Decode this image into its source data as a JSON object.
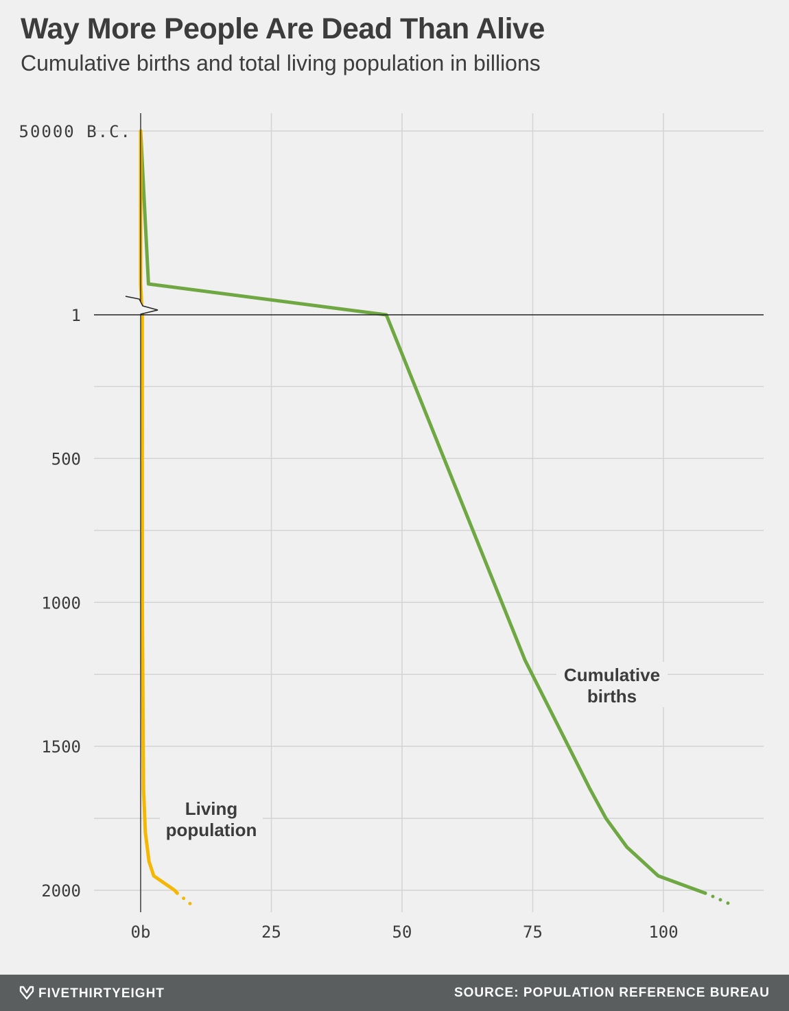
{
  "title": "Way More People Are Dead Than Alive",
  "subtitle": "Cumulative births and total living population in billions",
  "footer": {
    "brand": "FIVETHIRTYEIGHT",
    "brand_icon": "fivethirtyeight-fox-icon",
    "source": "SOURCE: POPULATION REFERENCE BUREAU"
  },
  "colors": {
    "background": "#f0f0f0",
    "cumulative_births": "#6fa843",
    "living_population": "#f5b800",
    "footer": "#5a5e5f"
  },
  "chart_data": {
    "type": "line",
    "y_axis": {
      "reversed": true,
      "axis_break": "between 50000 B.C. and 1",
      "ticks": [
        {
          "value": -50000,
          "label": "50000 B.C."
        },
        {
          "value": 1,
          "label": "1"
        },
        {
          "value": 500,
          "label": "500"
        },
        {
          "value": 1000,
          "label": "1000"
        },
        {
          "value": 1500,
          "label": "1500"
        },
        {
          "value": 2000,
          "label": "2000"
        }
      ],
      "gridlines": [
        -50000,
        1,
        250,
        500,
        750,
        1000,
        1250,
        1500,
        1750,
        2000
      ]
    },
    "x_axis": {
      "range": [
        0,
        110
      ],
      "ticks": [
        {
          "value": 0,
          "label": "0b"
        },
        {
          "value": 25,
          "label": "25"
        },
        {
          "value": 50,
          "label": "50"
        },
        {
          "value": 75,
          "label": "75"
        },
        {
          "value": 100,
          "label": "100"
        }
      ]
    },
    "grid": true,
    "series": [
      {
        "name": "Cumulative births",
        "label_lines": [
          "Cumulative",
          "births"
        ],
        "color": "#6fa843",
        "points": [
          {
            "year": -50000,
            "x": 0
          },
          {
            "year": -8000,
            "x": 1.5
          },
          {
            "year": 1,
            "x": 47
          },
          {
            "year": 1200,
            "x": 73.5
          },
          {
            "year": 1650,
            "x": 86
          },
          {
            "year": 1750,
            "x": 89
          },
          {
            "year": 1850,
            "x": 93
          },
          {
            "year": 1950,
            "x": 99
          },
          {
            "year": 2010,
            "x": 108
          }
        ],
        "projection": [
          {
            "year": 2010,
            "x": 108
          },
          {
            "year": 2050,
            "x": 113
          }
        ]
      },
      {
        "name": "Living population",
        "label_lines": [
          "Living",
          "population"
        ],
        "color": "#f5b800",
        "points": [
          {
            "year": -50000,
            "x": 0
          },
          {
            "year": -8000,
            "x": 0.005
          },
          {
            "year": 1,
            "x": 0.3
          },
          {
            "year": 1000,
            "x": 0.31
          },
          {
            "year": 1650,
            "x": 0.55
          },
          {
            "year": 1800,
            "x": 0.9
          },
          {
            "year": 1900,
            "x": 1.6
          },
          {
            "year": 1950,
            "x": 2.5
          },
          {
            "year": 2000,
            "x": 6.5
          },
          {
            "year": 2010,
            "x": 7
          }
        ],
        "projection": [
          {
            "year": 2010,
            "x": 7
          },
          {
            "year": 2050,
            "x": 9.7
          }
        ]
      }
    ]
  }
}
